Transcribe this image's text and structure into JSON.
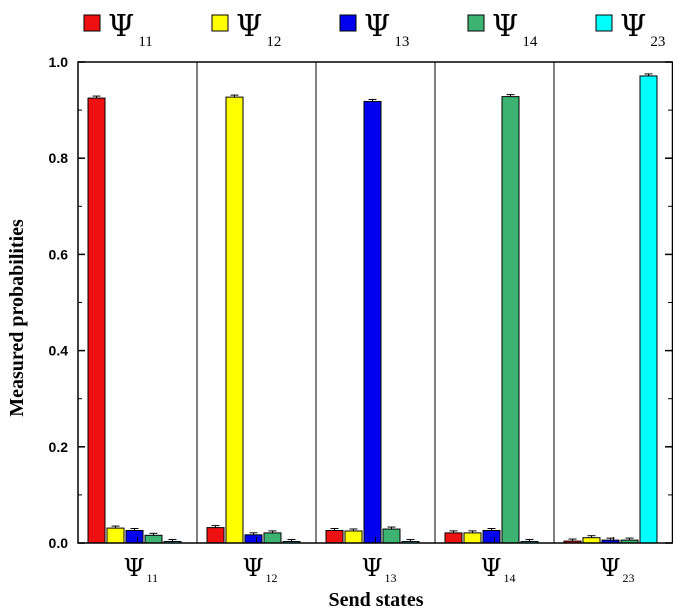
{
  "chart_data": {
    "type": "bar",
    "xlabel": "Send states",
    "ylabel": "Measured probabilities",
    "ylim": [
      0,
      1.0
    ],
    "yticks": [
      0.0,
      0.2,
      0.4,
      0.6,
      0.8,
      1.0
    ],
    "ytick_labels": [
      "0.0",
      "0.2",
      "0.4",
      "0.6",
      "0.8",
      "1.0"
    ],
    "grid": false,
    "legend_position": "top",
    "categories": [
      {
        "symbol": "Ψ",
        "sub": "11"
      },
      {
        "symbol": "Ψ",
        "sub": "12"
      },
      {
        "symbol": "Ψ",
        "sub": "13"
      },
      {
        "symbol": "Ψ",
        "sub": "14"
      },
      {
        "symbol": "Ψ",
        "sub": "23"
      }
    ],
    "series": [
      {
        "symbol": "Ψ",
        "sub": "11",
        "color": "#ee1111",
        "values": [
          0.925,
          0.032,
          0.026,
          0.021,
          0.004
        ]
      },
      {
        "symbol": "Ψ",
        "sub": "12",
        "color": "#ffff00",
        "values": [
          0.031,
          0.927,
          0.025,
          0.021,
          0.011
        ]
      },
      {
        "symbol": "Ψ",
        "sub": "13",
        "color": "#0000ee",
        "values": [
          0.026,
          0.017,
          0.918,
          0.026,
          0.006
        ]
      },
      {
        "symbol": "Ψ",
        "sub": "14",
        "color": "#3cb371",
        "values": [
          0.016,
          0.021,
          0.029,
          0.928,
          0.006
        ]
      },
      {
        "symbol": "Ψ",
        "sub": "23",
        "color": "#00ffff",
        "values": [
          0.003,
          0.003,
          0.003,
          0.003,
          0.971
        ]
      }
    ]
  }
}
